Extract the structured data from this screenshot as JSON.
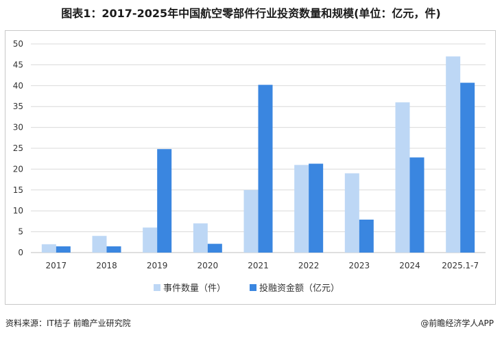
{
  "header": {
    "title": "图表1：2017-2025年中国航空零部件行业投资数量和规模(单位：亿元，件)"
  },
  "footer": {
    "source": "资料来源：IT桔子 前瞻产业研究院",
    "brand": "@前瞻经济学人APP"
  },
  "colors": {
    "series1": "#bdd7f5",
    "series2": "#3a86e0",
    "grid": "#d9d9d9",
    "axis": "#bfbfbf"
  },
  "chart_data": {
    "type": "bar",
    "categories": [
      "2017",
      "2018",
      "2019",
      "2020",
      "2021",
      "2022",
      "2023",
      "2024",
      "2025.1-7"
    ],
    "series": [
      {
        "name": "事件数量（件）",
        "values": [
          2,
          4,
          6,
          7,
          15,
          21,
          19,
          36,
          47
        ]
      },
      {
        "name": "投融资金额（亿元）",
        "values": [
          1.5,
          1.5,
          24.8,
          2.1,
          40.2,
          21.3,
          7.9,
          22.8,
          40.7
        ]
      }
    ],
    "yticks": [
      0,
      5,
      10,
      15,
      20,
      25,
      30,
      35,
      40,
      45,
      50
    ],
    "ylim": [
      0,
      50
    ],
    "grid": true,
    "legend": "bottom"
  }
}
